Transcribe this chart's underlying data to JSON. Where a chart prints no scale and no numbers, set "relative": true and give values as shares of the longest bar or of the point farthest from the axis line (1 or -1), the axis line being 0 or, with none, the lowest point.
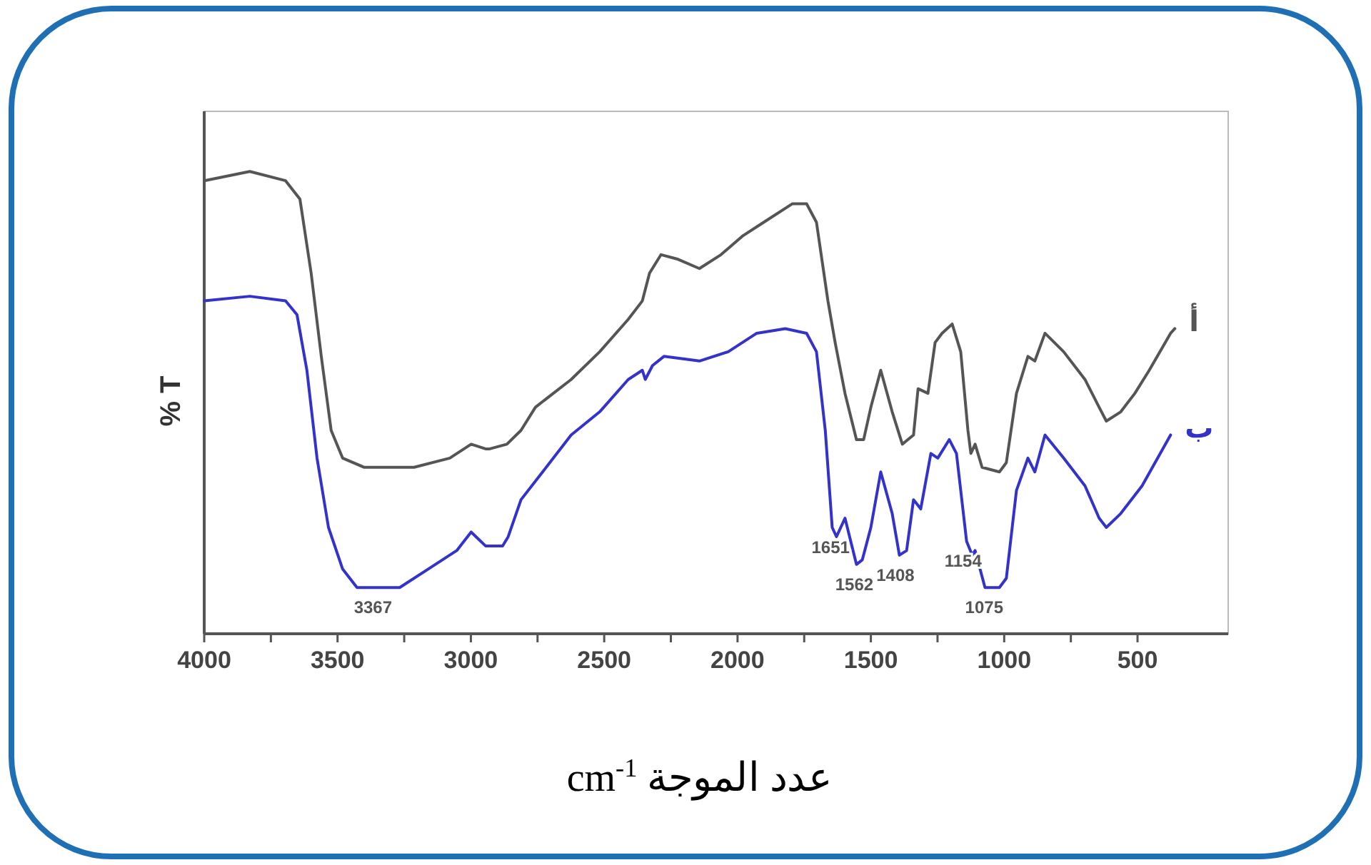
{
  "chart_data": {
    "type": "line",
    "relative": true,
    "ylabel": "% T",
    "xlabel": "عدد الموجة cm$^{-1}$",
    "xlim": [
      4000,
      160
    ],
    "xticks": [
      4000,
      {
        "value": 3750,
        "label": null
      },
      3500,
      {
        "value": 3250,
        "label": null
      },
      3000,
      {
        "value": 2750,
        "label": null
      },
      2500,
      {
        "value": 2250,
        "label": null
      },
      2000,
      {
        "value": 1750,
        "label": null
      },
      1500,
      {
        "value": 1250,
        "label": null
      },
      1000,
      {
        "value": 750,
        "label": null
      },
      500
    ],
    "grid": false,
    "marker": "none",
    "line_style": "solid",
    "series": [
      {
        "name": "أ",
        "color": "#555555",
        "x": [
          4000,
          3829,
          3695,
          3641,
          3599,
          3561,
          3524,
          3481,
          3400,
          3213,
          3079,
          2999,
          2945,
          2929,
          2865,
          2812,
          2758,
          2624,
          2517,
          2410,
          2357,
          2330,
          2287,
          2223,
          2143,
          2062,
          1982,
          1902,
          1795,
          1741,
          1704,
          1661,
          1634,
          1597,
          1554,
          1527,
          1500,
          1463,
          1420,
          1382,
          1340,
          1323,
          1286,
          1259,
          1233,
          1195,
          1163,
          1136,
          1125,
          1109,
          1083,
          1018,
          992,
          954,
          911,
          885,
          847,
          777,
          697,
          644,
          617,
          563,
          510,
          456,
          376,
          360
        ],
        "values": [
          0.98,
          1.0,
          0.98,
          0.94,
          0.78,
          0.6,
          0.44,
          0.38,
          0.36,
          0.36,
          0.38,
          0.41,
          0.4,
          0.4,
          0.41,
          0.44,
          0.49,
          0.55,
          0.61,
          0.68,
          0.72,
          0.78,
          0.82,
          0.81,
          0.79,
          0.82,
          0.86,
          0.89,
          0.93,
          0.93,
          0.89,
          0.72,
          0.63,
          0.52,
          0.42,
          0.42,
          0.49,
          0.57,
          0.48,
          0.41,
          0.43,
          0.53,
          0.52,
          0.63,
          0.65,
          0.67,
          0.61,
          0.44,
          0.39,
          0.41,
          0.36,
          0.35,
          0.37,
          0.52,
          0.6,
          0.59,
          0.65,
          0.61,
          0.55,
          0.49,
          0.46,
          0.48,
          0.52,
          0.57,
          0.65,
          0.66
        ]
      },
      {
        "name": "ب",
        "color": "#3333cc",
        "x": [
          4000,
          3829,
          3695,
          3652,
          3615,
          3577,
          3534,
          3481,
          3427,
          3363,
          3267,
          3160,
          3053,
          2999,
          2945,
          2913,
          2881,
          2860,
          2812,
          2731,
          2624,
          2517,
          2410,
          2357,
          2346,
          2319,
          2276,
          2143,
          2035,
          1928,
          1821,
          1741,
          1704,
          1671,
          1645,
          1629,
          1597,
          1554,
          1532,
          1500,
          1463,
          1420,
          1393,
          1366,
          1340,
          1313,
          1275,
          1249,
          1206,
          1179,
          1141,
          1120,
          1109,
          1072,
          1018,
          992,
          954,
          911,
          885,
          847,
          777,
          697,
          644,
          617,
          563,
          483,
          376
        ],
        "values": [
          0.72,
          0.73,
          0.72,
          0.69,
          0.57,
          0.38,
          0.23,
          0.14,
          0.1,
          0.1,
          0.1,
          0.14,
          0.18,
          0.22,
          0.19,
          0.19,
          0.19,
          0.21,
          0.29,
          0.35,
          0.43,
          0.48,
          0.55,
          0.57,
          0.55,
          0.58,
          0.6,
          0.59,
          0.61,
          0.65,
          0.66,
          0.65,
          0.61,
          0.44,
          0.23,
          0.21,
          0.25,
          0.15,
          0.16,
          0.23,
          0.35,
          0.26,
          0.17,
          0.18,
          0.29,
          0.27,
          0.39,
          0.38,
          0.42,
          0.39,
          0.2,
          0.17,
          0.18,
          0.1,
          0.1,
          0.12,
          0.31,
          0.38,
          0.35,
          0.43,
          0.38,
          0.32,
          0.25,
          0.23,
          0.26,
          0.32,
          0.43
        ]
      }
    ],
    "annotations": [
      {
        "text": "3367",
        "x": 3367,
        "y": 0.1
      },
      {
        "text": "1651",
        "x": 1651,
        "y": 0.23
      },
      {
        "text": "1562",
        "x": 1562,
        "y": 0.15
      },
      {
        "text": "1408",
        "x": 1408,
        "y": 0.17
      },
      {
        "text": "1154",
        "x": 1154,
        "y": 0.2
      },
      {
        "text": "1075",
        "x": 1075,
        "y": 0.1
      }
    ]
  }
}
